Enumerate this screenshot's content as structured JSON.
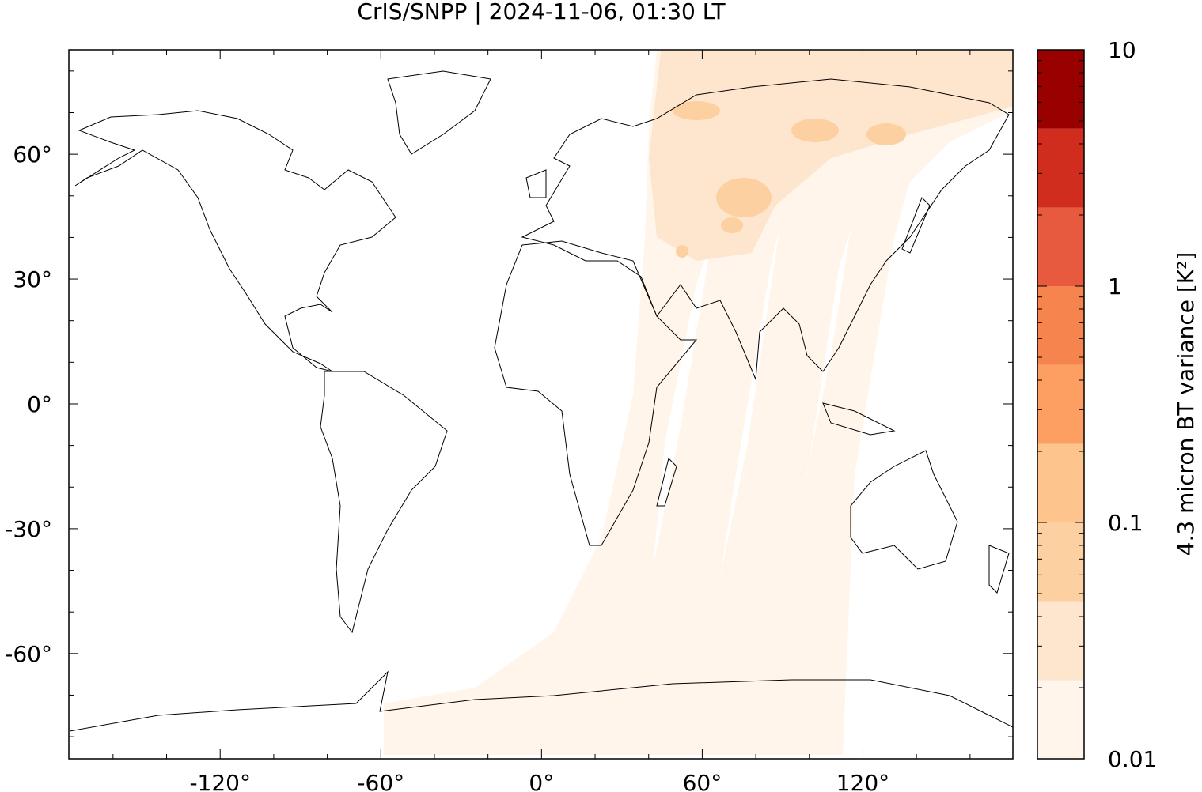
{
  "chart_data": {
    "type": "map",
    "title": "CrIS/SNPP | 2024-11-06, 01:30 LT",
    "xlim": [
      -176.5,
      176
    ],
    "ylim": [
      -85.3,
      85.1
    ],
    "xticks": [
      {
        "value": -120,
        "label": "-120°"
      },
      {
        "value": -60,
        "label": "-60°"
      },
      {
        "value": 0,
        "label": "0°"
      },
      {
        "value": 60,
        "label": "60°"
      },
      {
        "value": 120,
        "label": "120°"
      }
    ],
    "yticks": [
      {
        "value": -60,
        "label": "-60°"
      },
      {
        "value": -30,
        "label": "-30°"
      },
      {
        "value": 0,
        "label": "0°"
      },
      {
        "value": 30,
        "label": "30°"
      },
      {
        "value": 60,
        "label": "60°"
      }
    ],
    "x_minor_ticks": [
      -160,
      -140,
      -100,
      -80,
      -40,
      -20,
      20,
      40,
      80,
      100,
      140,
      160
    ],
    "y_minor_ticks": [
      -80,
      -70,
      -50,
      -40,
      -20,
      -10,
      10,
      20,
      40,
      50,
      70,
      80
    ],
    "colorbar": {
      "label": "4.3 micron BT variance [K²]",
      "scale": "log",
      "lim": [
        0.01,
        10
      ],
      "ticks": [
        10,
        1,
        0.1,
        0.01
      ],
      "minor_ticks": [
        0.02,
        0.03,
        0.04,
        0.05,
        0.06,
        0.07,
        0.08,
        0.09,
        0.2,
        0.3,
        0.4,
        0.5,
        0.6,
        0.7,
        0.8,
        0.9,
        2,
        3,
        4,
        5,
        6,
        7,
        8,
        9
      ],
      "levels": [
        0.01,
        0.0215,
        0.0464,
        0.1,
        0.215,
        0.464,
        1,
        2.15,
        4.64,
        10
      ],
      "colors": [
        "#fff5eb",
        "#fee6ce",
        "#fdd0a2",
        "#fdc48e",
        "#fd9f63",
        "#f5844f",
        "#e85a3f",
        "#d02d1f",
        "#990000"
      ]
    }
  }
}
